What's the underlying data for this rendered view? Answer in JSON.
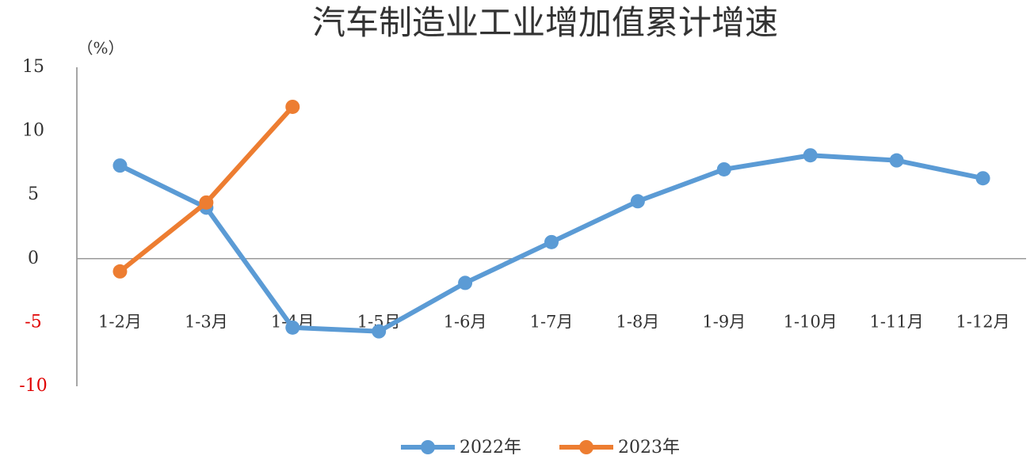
{
  "chart_data": {
    "type": "line",
    "title": "汽车制造业工业增加值累计增速",
    "y_label": "（%）",
    "categories": [
      "1-2月",
      "1-3月",
      "1-4月",
      "1-5月",
      "1-6月",
      "1-7月",
      "1-8月",
      "1-9月",
      "1-10月",
      "1-11月",
      "1-12月"
    ],
    "series": [
      {
        "name": "2022年",
        "color": "#5b9bd5",
        "values": [
          7.3,
          4.0,
          -5.4,
          -5.7,
          -1.9,
          1.3,
          4.5,
          7.0,
          8.1,
          7.7,
          6.3
        ]
      },
      {
        "name": "2023年",
        "color": "#ed7d31",
        "values": [
          -1.0,
          4.4,
          11.9,
          null,
          null,
          null,
          null,
          null,
          null,
          null,
          null
        ]
      }
    ],
    "ylim": [
      -10,
      15
    ],
    "yticks": [
      -10,
      -5,
      0,
      5,
      10,
      15
    ],
    "negative_tick_color": "#e00000",
    "legend": "bottom"
  }
}
